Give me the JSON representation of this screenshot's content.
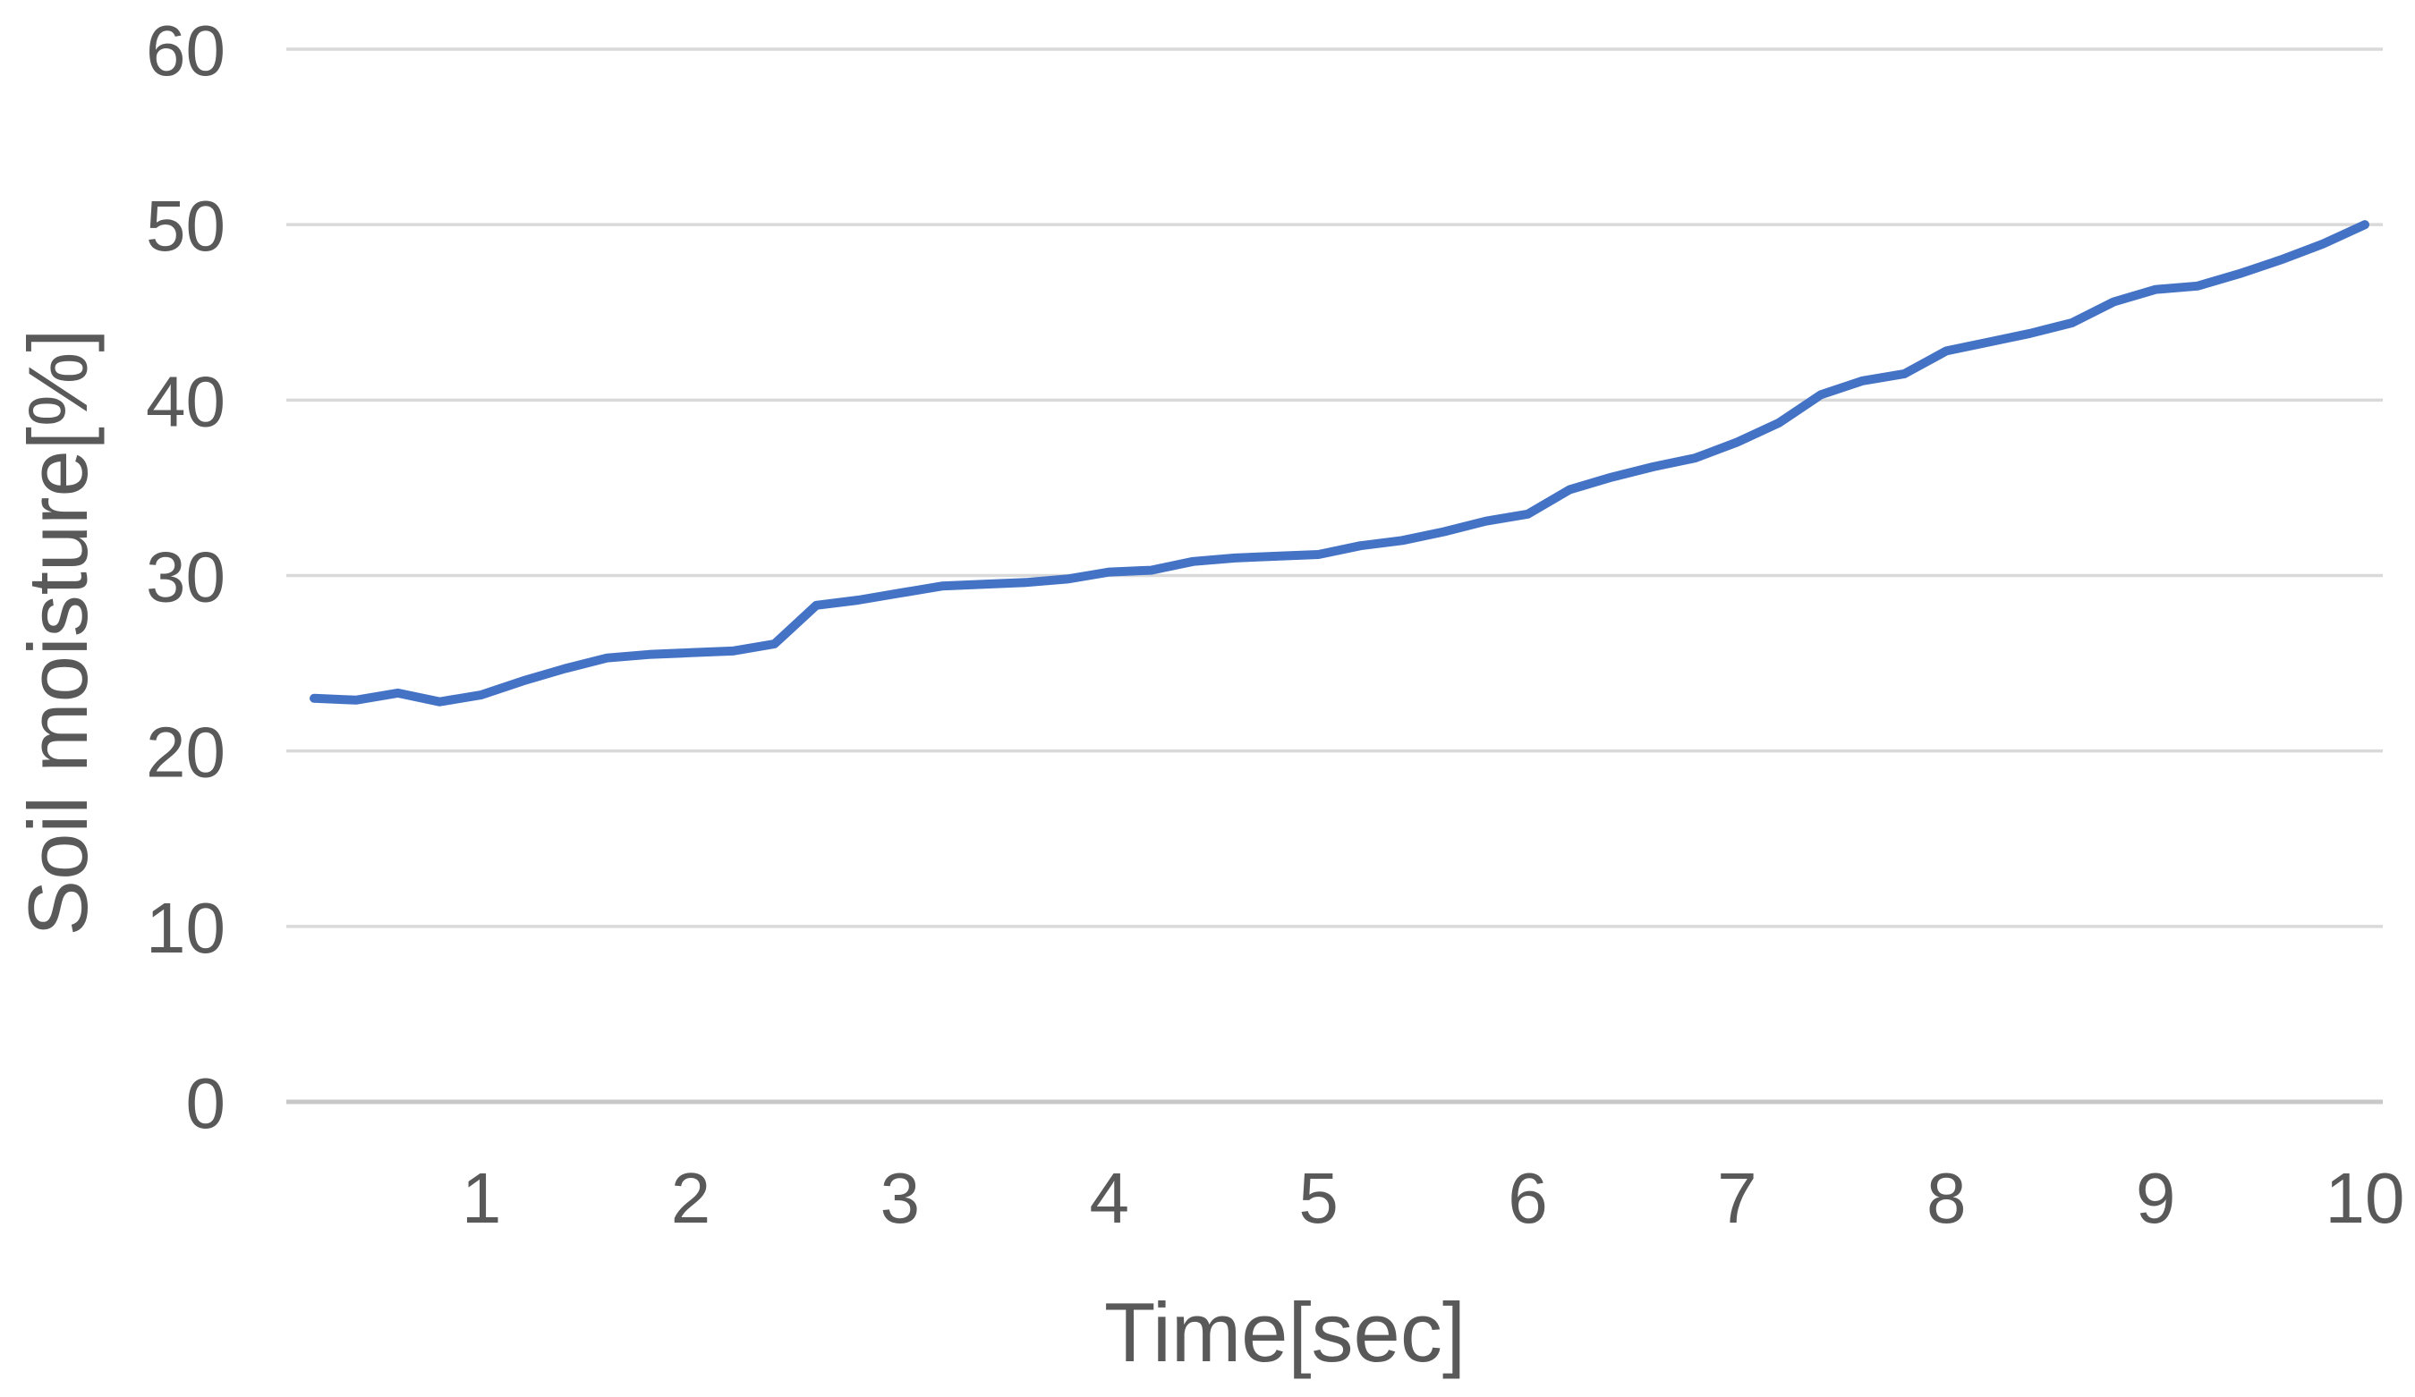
{
  "chart_data": {
    "type": "line",
    "title": "",
    "xlabel": "Time[sec]",
    "ylabel": "Soil moisture[%]",
    "x": [
      0.2,
      0.4,
      0.6,
      0.8,
      1.0,
      1.2,
      1.4,
      1.6,
      1.8,
      2.0,
      2.2,
      2.4,
      2.6,
      2.8,
      3.0,
      3.2,
      3.4,
      3.6,
      3.8,
      4.0,
      4.2,
      4.4,
      4.6,
      4.8,
      5.0,
      5.2,
      5.4,
      5.6,
      5.8,
      6.0,
      6.2,
      6.4,
      6.6,
      6.8,
      7.0,
      7.2,
      7.4,
      7.6,
      7.8,
      8.0,
      8.2,
      8.4,
      8.6,
      8.8,
      9.0,
      9.2,
      9.4,
      9.6,
      9.8,
      10.0
    ],
    "series": [
      {
        "name": "Soil moisture",
        "values": [
          23.0,
          22.9,
          23.3,
          22.8,
          23.2,
          24.0,
          24.7,
          25.3,
          25.5,
          25.6,
          25.7,
          26.1,
          28.3,
          28.6,
          29.0,
          29.4,
          29.5,
          29.6,
          29.8,
          30.2,
          30.3,
          30.8,
          31.0,
          31.1,
          31.2,
          31.7,
          32.0,
          32.5,
          33.1,
          33.5,
          34.9,
          35.6,
          36.2,
          36.7,
          37.6,
          38.7,
          40.3,
          41.1,
          41.5,
          42.8,
          43.3,
          43.8,
          44.4,
          45.6,
          46.3,
          46.5,
          47.2,
          48.0,
          48.9,
          50.0
        ]
      }
    ],
    "xlim": [
      0.2,
      10
    ],
    "ylim": [
      0,
      60
    ],
    "x_ticks": [
      "1",
      "2",
      "3",
      "4",
      "5",
      "6",
      "7",
      "8",
      "9",
      "10"
    ],
    "x_tick_values": [
      1,
      2,
      3,
      4,
      5,
      6,
      7,
      8,
      9,
      10
    ],
    "y_ticks": [
      "0",
      "10",
      "20",
      "30",
      "40",
      "50",
      "60"
    ],
    "y_tick_values": [
      0,
      10,
      20,
      30,
      40,
      50,
      60
    ],
    "grid": "horizontal",
    "legend": "none",
    "colors": {
      "line": "#4472C4",
      "gridline": "#D9D9D9",
      "axis_line": "#C8C8C8",
      "tick_label": "#595959",
      "axis_title": "#595959",
      "background": "#FFFFFF"
    }
  }
}
